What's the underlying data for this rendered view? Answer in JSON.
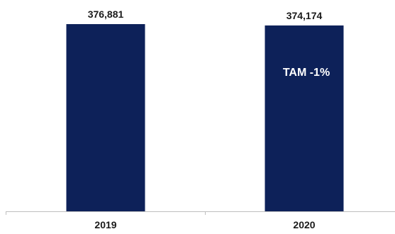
{
  "chart_data": {
    "type": "bar",
    "categories": [
      "2019",
      "2020"
    ],
    "values": [
      376881,
      374174
    ],
    "value_labels": [
      "376,881",
      "374,174"
    ],
    "annotation": {
      "text": "TAM -1%",
      "category": "2020",
      "color": "#ffffff"
    },
    "ylim": [
      0,
      376881
    ],
    "grid": false,
    "legend": "none",
    "bar_color": "#0d2159",
    "label_color": "#1a1a1a",
    "tick_label_color": "#1a1a1a",
    "axis_color": "#bfbfbf"
  }
}
